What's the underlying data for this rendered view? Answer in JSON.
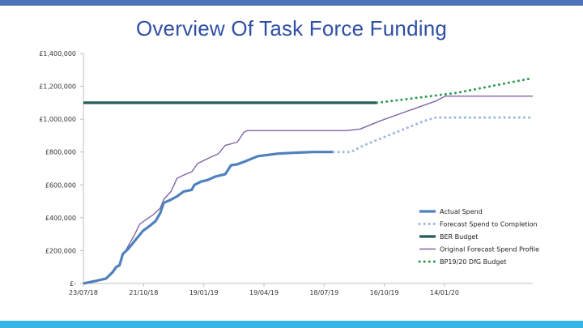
{
  "slide": {
    "title": "Overview Of Task Force Funding",
    "colors": {
      "topbar": "#4a73b8",
      "bottombar": "#33b5e5",
      "title": "#2f4fa3"
    }
  },
  "chart_data": {
    "type": "line",
    "title": "",
    "xlabel": "",
    "ylabel": "",
    "ylim": [
      0,
      1400000
    ],
    "xlim": [
      "2018-07-23",
      "2020-05-25"
    ],
    "y_ticks": [
      0,
      200000,
      400000,
      600000,
      800000,
      1000000,
      1200000,
      1400000
    ],
    "y_tick_labels": [
      "£-",
      "£200,000",
      "£400,000",
      "£600,000",
      "£800,000",
      "£1,000,000",
      "£1,200,000",
      "£1,400,000"
    ],
    "x_ticks": [
      "2018-07-23",
      "2018-10-21",
      "2019-01-19",
      "2019-04-19",
      "2019-07-18",
      "2019-10-16",
      "2020-01-14"
    ],
    "x_tick_labels": [
      "23/07/18",
      "21/10/18",
      "19/01/19",
      "19/04/19",
      "18/07/19",
      "16/10/19",
      "14/01/20"
    ],
    "grid": false,
    "legend": "right",
    "series": [
      {
        "name": "Actual Spend",
        "color": "#4f81bd",
        "style": "solid-thick",
        "points": [
          [
            "2018-07-23",
            0
          ],
          [
            "2018-08-10",
            15000
          ],
          [
            "2018-08-26",
            30000
          ],
          [
            "2018-09-05",
            70000
          ],
          [
            "2018-09-10",
            100000
          ],
          [
            "2018-09-15",
            110000
          ],
          [
            "2018-09-20",
            180000
          ],
          [
            "2018-09-28",
            210000
          ],
          [
            "2018-10-10",
            270000
          ],
          [
            "2018-10-20",
            320000
          ],
          [
            "2018-10-30",
            350000
          ],
          [
            "2018-11-08",
            380000
          ],
          [
            "2018-11-15",
            430000
          ],
          [
            "2018-11-20",
            490000
          ],
          [
            "2018-12-01",
            510000
          ],
          [
            "2018-12-10",
            530000
          ],
          [
            "2018-12-20",
            560000
          ],
          [
            "2019-01-01",
            570000
          ],
          [
            "2019-01-05",
            600000
          ],
          [
            "2019-01-15",
            620000
          ],
          [
            "2019-01-25",
            630000
          ],
          [
            "2019-02-05",
            650000
          ],
          [
            "2019-02-15",
            660000
          ],
          [
            "2019-02-20",
            665000
          ],
          [
            "2019-03-01",
            720000
          ],
          [
            "2019-03-10",
            725000
          ],
          [
            "2019-03-20",
            740000
          ],
          [
            "2019-04-01",
            760000
          ],
          [
            "2019-04-10",
            775000
          ],
          [
            "2019-04-20",
            780000
          ],
          [
            "2019-05-10",
            790000
          ],
          [
            "2019-06-01",
            795000
          ],
          [
            "2019-07-01",
            800000
          ],
          [
            "2019-08-01",
            800000
          ]
        ]
      },
      {
        "name": "Forecast Spend to Completion",
        "color": "#9bb7dd",
        "style": "dotted",
        "points": [
          [
            "2019-08-01",
            800000
          ],
          [
            "2019-08-27",
            800000
          ],
          [
            "2019-09-15",
            840000
          ],
          [
            "2019-10-15",
            890000
          ],
          [
            "2019-11-15",
            940000
          ],
          [
            "2019-12-15",
            990000
          ],
          [
            "2020-01-01",
            1010000
          ],
          [
            "2020-05-20",
            1010000
          ]
        ]
      },
      {
        "name": "BER Budget",
        "color": "#255b57",
        "style": "solid-thick",
        "points": [
          [
            "2018-07-23",
            1100000
          ],
          [
            "2019-10-05",
            1100000
          ]
        ]
      },
      {
        "name": "Original Forecast Spend Profile",
        "color": "#8064a2",
        "style": "solid-thin",
        "points": [
          [
            "2018-07-23",
            0
          ],
          [
            "2018-08-26",
            30000
          ],
          [
            "2018-09-05",
            70000
          ],
          [
            "2018-09-15",
            120000
          ],
          [
            "2018-09-20",
            170000
          ],
          [
            "2018-10-01",
            250000
          ],
          [
            "2018-10-08",
            300000
          ],
          [
            "2018-10-15",
            360000
          ],
          [
            "2018-10-25",
            390000
          ],
          [
            "2018-11-05",
            420000
          ],
          [
            "2018-11-15",
            460000
          ],
          [
            "2018-11-20",
            510000
          ],
          [
            "2018-12-01",
            560000
          ],
          [
            "2018-12-10",
            640000
          ],
          [
            "2018-12-20",
            660000
          ],
          [
            "2019-01-01",
            680000
          ],
          [
            "2019-01-10",
            730000
          ],
          [
            "2019-01-25",
            760000
          ],
          [
            "2019-02-10",
            790000
          ],
          [
            "2019-02-20",
            840000
          ],
          [
            "2019-03-10",
            860000
          ],
          [
            "2019-03-20",
            920000
          ],
          [
            "2019-03-25",
            930000
          ],
          [
            "2019-08-20",
            930000
          ],
          [
            "2019-09-10",
            940000
          ],
          [
            "2019-10-10",
            990000
          ],
          [
            "2019-11-20",
            1050000
          ],
          [
            "2020-01-01",
            1110000
          ],
          [
            "2020-01-15",
            1140000
          ],
          [
            "2020-05-25",
            1140000
          ]
        ]
      },
      {
        "name": "BP19/20 DfG Budget",
        "color": "#2e9a4f",
        "style": "dotted",
        "points": [
          [
            "2019-10-05",
            1100000
          ],
          [
            "2020-02-01",
            1160000
          ],
          [
            "2020-05-25",
            1250000
          ]
        ]
      }
    ]
  }
}
